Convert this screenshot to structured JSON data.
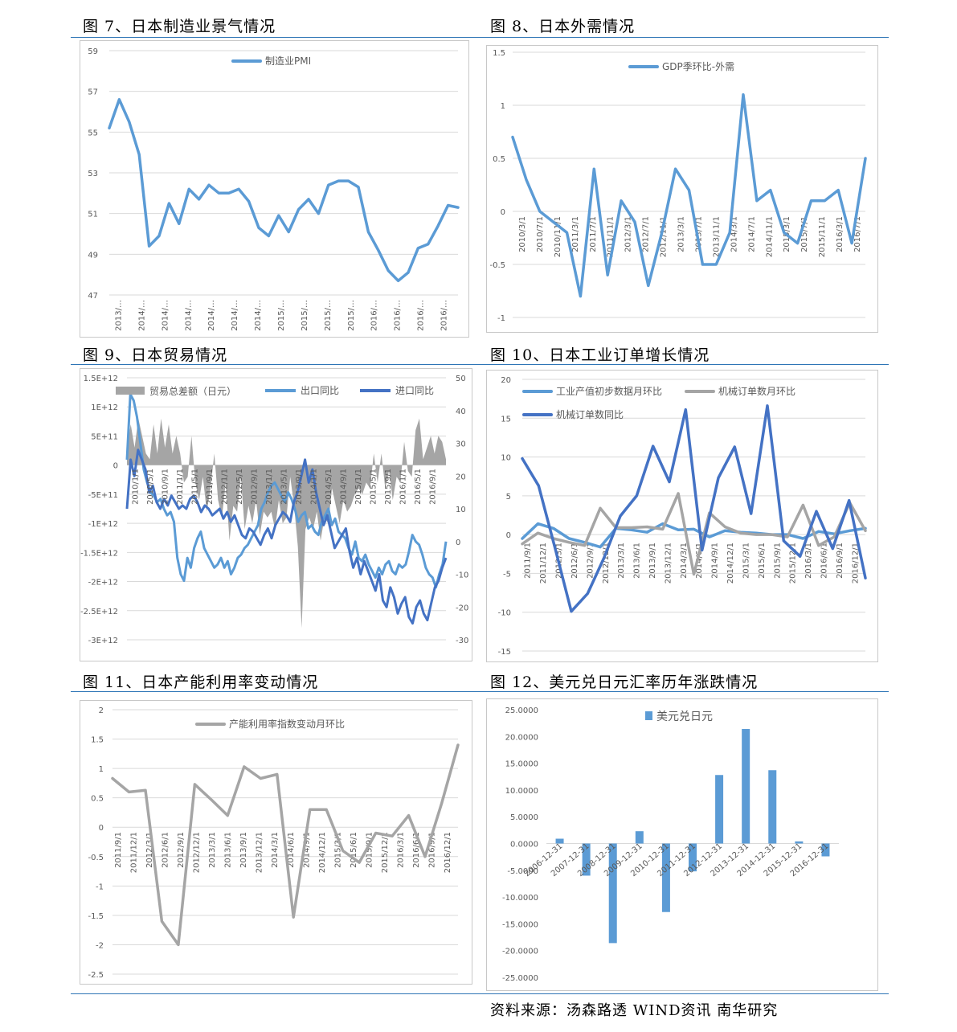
{
  "titles": {
    "fig7": "图 7、日本制造业景气情况",
    "fig8": "图 8、日本外需情况",
    "fig9": "图 9、日本贸易情况",
    "fig10": "图 10、日本工业订单增长情况",
    "fig11": "图 11、日本产能利用率变动情况",
    "fig12": "图 12、美元兑日元汇率历年涨跌情况"
  },
  "source": "资料来源：汤森路透 WIND资讯 南华研究",
  "colors": {
    "light_blue": "#5b9bd5",
    "dark_blue": "#4472c4",
    "gray": "#a5a5a5",
    "rule": "#2e75b6"
  },
  "chart_data": [
    {
      "id": "fig7",
      "type": "line",
      "ylim": [
        47,
        59
      ],
      "yticks": [
        47,
        49,
        51,
        53,
        55,
        57,
        59
      ],
      "xticklabels": [
        "2013/…",
        "2014/…",
        "2014/…",
        "2014/…",
        "2014/…",
        "2014/…",
        "2014/…",
        "2015/…",
        "2015/…",
        "2015/…",
        "2015/…",
        "2016/…",
        "2016/…",
        "2016/…",
        "2016/…"
      ],
      "series": [
        {
          "name": "制造业PMI",
          "color": "#5b9bd5",
          "values": [
            55.2,
            56.6,
            55.5,
            53.9,
            49.4,
            49.9,
            51.5,
            50.5,
            52.2,
            51.7,
            52.4,
            52.0,
            52.0,
            52.2,
            51.6,
            50.3,
            49.9,
            50.9,
            50.1,
            51.2,
            51.7,
            51.0,
            52.4,
            52.6,
            52.6,
            52.3,
            50.1,
            49.2,
            48.2,
            47.7,
            48.1,
            49.3,
            49.5,
            50.4,
            51.4,
            51.3
          ]
        }
      ]
    },
    {
      "id": "fig8",
      "type": "line",
      "ylim": [
        -1,
        1.5
      ],
      "yticks": [
        -1,
        -0.5,
        0,
        0.5,
        1,
        1.5
      ],
      "xticklabels": [
        "2010/3/1",
        "2010/7/1",
        "2010/11/1",
        "2011/3/1",
        "2011/7/1",
        "2011/11/1",
        "2012/3/1",
        "2012/7/1",
        "2012/11/1",
        "2013/3/1",
        "2013/7/1",
        "2013/11/1",
        "2014/3/1",
        "2014/7/1",
        "2014/11/1",
        "2015/3/1",
        "2015/7/1",
        "2015/11/1",
        "2016/3/1",
        "2016/7/1"
      ],
      "series": [
        {
          "name": "GDP季环比-外需",
          "color": "#5b9bd5",
          "values": [
            0.7,
            0.3,
            0.0,
            -0.1,
            -0.2,
            -0.8,
            0.4,
            -0.6,
            0.1,
            -0.1,
            -0.7,
            -0.2,
            0.4,
            0.2,
            -0.5,
            -0.5,
            -0.2,
            1.1,
            0.1,
            0.2,
            -0.2,
            -0.3,
            0.1,
            0.1,
            0.2,
            -0.3,
            0.5
          ]
        }
      ]
    },
    {
      "id": "fig9",
      "type": "area",
      "y_left": {
        "ticklabels": [
          "1.5E+12",
          "1E+12",
          "5E+11",
          "0",
          "-5E+11",
          "-1E+12",
          "-1.5E+12",
          "-2E+12",
          "-2.5E+12",
          "-3E+12"
        ],
        "lim": [
          -3000000000000.0,
          1500000000000.0
        ]
      },
      "y_right": {
        "ticklabels": [
          "50",
          "40",
          "30",
          "20",
          "10",
          "0",
          "-10",
          "-20",
          "-30"
        ],
        "lim": [
          -30,
          50
        ]
      },
      "xticklabels": [
        "2010/1/1",
        "2010/5/1",
        "2010/9/1",
        "2011/1/1",
        "2011/5/1",
        "2011/9/1",
        "2012/1/1",
        "2012/5/1",
        "2012/9/1",
        "2013/1/1",
        "2013/5/1",
        "2013/9/1",
        "2014/1/1",
        "2014/5/1",
        "2014/9/1",
        "2015/1/1",
        "2015/5/1",
        "2015/9/1",
        "2016/1/1",
        "2016/5/1",
        "2016/9/1"
      ],
      "series": [
        {
          "name": "贸易总差额（日元）",
          "axis": "left",
          "color": "#a5a5a5",
          "values": [
            300000000000.0,
            700000000000.0,
            300000000000.0,
            800000000000.0,
            500000000000.0,
            200000000000.0,
            100000000000.0,
            700000000000.0,
            200000000000.0,
            800000000000.0,
            300000000000.0,
            700000000000.0,
            200000000000.0,
            500000000000.0,
            200000000000.0,
            -300000000000.0,
            -200000000000.0,
            500000000000.0,
            -300000000000.0,
            -600000000000.0,
            -200000000000.0,
            -800000000000.0,
            -400000000000.0,
            200000000000.0,
            -600000000000.0,
            -900000000000.0,
            -300000000000.0,
            -1300000000000.0,
            -700000000000.0,
            -800000000000.0,
            -200000000000.0,
            -1100000000000.0,
            -700000000000.0,
            -1000000000000.0,
            -600000000000.0,
            -1200000000000.0,
            -800000000000.0,
            -900000000000.0,
            -800000000000.0,
            -1100000000000.0,
            -600000000000.0,
            -1000000000000.0,
            -900000000000.0,
            -200000000000.0,
            -700000000000.0,
            -1400000000000.0,
            -2800000000000.0,
            -1100000000000.0,
            -900000000000.0,
            -1100000000000.0,
            -800000000000.0,
            -1300000000000.0,
            -900000000000.0,
            -1000000000000.0,
            -400000000000.0,
            -700000000000.0,
            -1000000000000.0,
            -600000000000.0,
            -800000000000.0,
            -700000000000.0,
            -500000000000.0,
            -400000000000.0,
            -500000000000.0,
            -300000000000.0,
            -400000000000.0,
            200000000000.0,
            -300000000000.0,
            200000000000.0,
            -400000000000.0,
            -100000000000.0,
            -600000000000.0,
            -200000000000.0,
            -300000000000.0,
            400000000000.0,
            -100000000000.0,
            -200000000000.0,
            600000000000.0,
            800000000000.0,
            100000000000.0,
            300000000000.0,
            500000000000.0,
            200000000000.0,
            500000000000.0,
            400000000000.0,
            100000000000.0
          ]
        },
        {
          "name": "出口同比",
          "axis": "right",
          "color": "#5b9bd5",
          "values": [
            25,
            45,
            43,
            38,
            30,
            22,
            18,
            15,
            14,
            12,
            13,
            10,
            8,
            9,
            6,
            -5,
            -10,
            -12,
            -5,
            -8,
            -2,
            1,
            3,
            -2,
            -4,
            -6,
            -8,
            -7,
            -5,
            -8,
            -6,
            -10,
            -8,
            -5,
            -4,
            -2,
            -1,
            1,
            3,
            5,
            10,
            12,
            15,
            17,
            18,
            16,
            14,
            12,
            15,
            13,
            10,
            6,
            8,
            9,
            4,
            5,
            3,
            2,
            6,
            8,
            10,
            5,
            7,
            3,
            2,
            1,
            -2,
            -4,
            0,
            -5,
            -6,
            -4,
            -7,
            -9,
            -11,
            -8,
            -10,
            -7,
            -6,
            -9,
            -10,
            -7,
            -8,
            -7,
            -3,
            2,
            0,
            -1,
            -4,
            -8,
            -10,
            -11,
            -14,
            -10,
            -7,
            0
          ]
        },
        {
          "name": "进口同比",
          "axis": "right",
          "color": "#4472c4",
          "values": [
            10,
            25,
            20,
            28,
            25,
            22,
            15,
            17,
            12,
            10,
            13,
            11,
            14,
            12,
            10,
            11,
            10,
            13,
            14,
            12,
            9,
            11,
            10,
            8,
            9,
            10,
            7,
            9,
            6,
            8,
            5,
            2,
            1,
            4,
            3,
            1,
            -1,
            2,
            4,
            1,
            5,
            7,
            9,
            8,
            6,
            12,
            15,
            20,
            25,
            18,
            22,
            15,
            10,
            5,
            8,
            3,
            -2,
            0,
            2,
            4,
            -3,
            -8,
            -5,
            -10,
            -6,
            -9,
            -12,
            -15,
            -10,
            -18,
            -20,
            -14,
            -17,
            -22,
            -19,
            -17,
            -23,
            -25,
            -20,
            -18,
            -22,
            -24,
            -19,
            -14,
            -12,
            -8,
            -5
          ]
        }
      ]
    },
    {
      "id": "fig10",
      "type": "line",
      "ylim": [
        -15,
        20
      ],
      "yticks": [
        -15,
        -10,
        -5,
        0,
        5,
        10,
        15,
        20
      ],
      "xticklabels": [
        "2011/9/1",
        "2011/12/1",
        "2012/3/1",
        "2012/6/1",
        "2012/9/1",
        "2012/12/1",
        "2013/3/1",
        "2013/6/1",
        "2013/9/1",
        "2013/12/1",
        "2014/3/1",
        "2014/6/1",
        "2014/9/1",
        "2014/12/1",
        "2015/3/1",
        "2015/6/1",
        "2015/9/1",
        "2015/12/1",
        "2016/3/1",
        "2016/6/1",
        "2016/9/1",
        "2016/12/1"
      ],
      "series": [
        {
          "name": "工业产值初步数据月环比",
          "color": "#5b9bd5",
          "values": [
            -0.5,
            1.4,
            0.8,
            -0.5,
            -1.0,
            -1.6,
            0.8,
            0.6,
            0.3,
            1.4,
            0.6,
            0.7,
            -0.3,
            0.5,
            0.3,
            0.2,
            0.0,
            0.0,
            -0.5,
            0.4,
            0.1,
            0.5,
            0.8
          ]
        },
        {
          "name": "机械订单数月环比",
          "color": "#a5a5a5",
          "values": [
            -1.2,
            0.2,
            -0.5,
            -1.0,
            -1.4,
            3.4,
            0.9,
            0.9,
            1.0,
            0.7,
            5.3,
            -5.1,
            2.8,
            1.0,
            0.2,
            0.0,
            0.0,
            -0.3,
            3.8,
            -1.4,
            -0.3,
            4.1,
            0.5
          ]
        },
        {
          "name": "机械订单数同比",
          "color": "#4472c4",
          "values": [
            9.8,
            6.3,
            -1.7,
            -9.9,
            -7.6,
            -3.0,
            2.4,
            5.0,
            11.4,
            6.8,
            16.1,
            -2.0,
            7.3,
            11.3,
            2.7,
            16.6,
            -0.8,
            -2.8,
            3.0,
            -1.8,
            4.4,
            -5.6
          ]
        }
      ]
    },
    {
      "id": "fig11",
      "type": "line",
      "ylim": [
        -2.5,
        2
      ],
      "yticks": [
        -2.5,
        -2,
        -1.5,
        -1,
        -0.5,
        0,
        0.5,
        1,
        1.5,
        2
      ],
      "xticklabels": [
        "2011/9/1",
        "2011/12/1",
        "2012/3/1",
        "2012/6/1",
        "2012/9/1",
        "2012/12/1",
        "2013/3/1",
        "2013/6/1",
        "2013/9/1",
        "2013/12/1",
        "2014/3/1",
        "2014/6/1",
        "2014/9/1",
        "2014/12/1",
        "2015/3/1",
        "2015/6/1",
        "2015/9/1",
        "2015/12/1",
        "2016/3/1",
        "2016/6/1",
        "2016/9/1",
        "2016/12/1"
      ],
      "series": [
        {
          "name": "产能利用率指数变动月环比",
          "color": "#a5a5a5",
          "values": [
            0.83,
            0.6,
            0.63,
            -1.6,
            -2.0,
            0.73,
            0.47,
            0.2,
            1.03,
            0.83,
            0.9,
            -1.53,
            0.3,
            0.3,
            -0.4,
            -0.6,
            -0.1,
            -0.15,
            0.2,
            -0.5,
            0.4,
            1.4
          ]
        }
      ]
    },
    {
      "id": "fig12",
      "type": "bar",
      "ylim": [
        -25,
        25
      ],
      "yticks": [
        "25.0000",
        "20.0000",
        "15.0000",
        "10.0000",
        "5.0000",
        "0.0000",
        "-5.0000",
        "-10.0000",
        "-15.0000",
        "-20.0000",
        "-25.0000"
      ],
      "categories": [
        "2006-12-31",
        "2007-12-31",
        "2008-12-31",
        "2009-12-31",
        "2010-12-31",
        "2011-12-31",
        "2012-12-31",
        "2013-12-31",
        "2014-12-31",
        "2015-12-31",
        "2016-12-31"
      ],
      "series": [
        {
          "name": "美元兑日元",
          "color": "#5b9bd5",
          "values": [
            0.9,
            -6.0,
            -18.6,
            2.3,
            -12.8,
            -5.2,
            12.8,
            21.4,
            13.7,
            0.4,
            -2.4
          ]
        }
      ]
    }
  ]
}
